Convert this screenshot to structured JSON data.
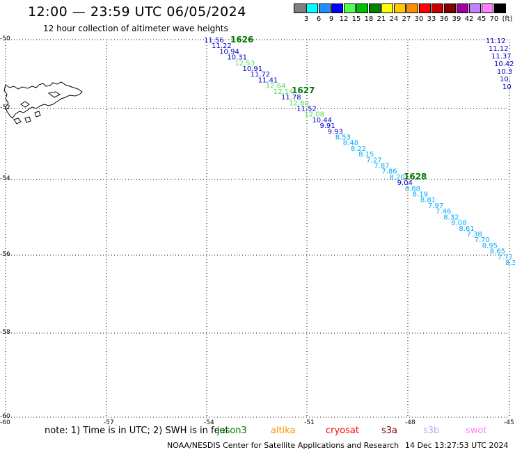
{
  "header": {
    "title": "12:00 — 23:59 UTC 06/05/2024",
    "subtitle": "12 hour collection of altimeter wave heights"
  },
  "legend": {
    "unit": "(ft)",
    "colors": [
      "#808080",
      "#00ffff",
      "#1e90ff",
      "#0000ff",
      "#50ff50",
      "#00c000",
      "#008000",
      "#ffff00",
      "#ffc800",
      "#ff8c00",
      "#ff0000",
      "#c80000",
      "#800000",
      "#a000a0",
      "#c080ff",
      "#ff80ff",
      "#000000"
    ],
    "labels": [
      "3",
      "6",
      "9",
      "12",
      "15",
      "18",
      "21",
      "24",
      "27",
      "30",
      "33",
      "36",
      "39",
      "42",
      "45",
      "70"
    ]
  },
  "axes": {
    "lat_labels": [
      "-50",
      "-52",
      "-54",
      "-56",
      "-58",
      "-60"
    ],
    "lon_labels": [
      "-57",
      "-54",
      "-51",
      "-48",
      "-45"
    ]
  },
  "passes": [
    {
      "id": "1626"
    },
    {
      "id": "1627"
    },
    {
      "id": "1628"
    }
  ],
  "track_values": [
    {
      "v": "11.56",
      "c": "#0000cc"
    },
    {
      "v": "11.22",
      "c": "#0000cc"
    },
    {
      "v": "10.94",
      "c": "#0000cc"
    },
    {
      "v": "10.31",
      "c": "#0000cc"
    },
    {
      "v": "12.53",
      "c": "#50e050"
    },
    {
      "v": "10.91",
      "c": "#0000cc"
    },
    {
      "v": "11.72",
      "c": "#0000cc"
    },
    {
      "v": "11.41",
      "c": "#0000cc"
    },
    {
      "v": "12.64",
      "c": "#50e050"
    },
    {
      "v": "12.14",
      "c": "#50e050"
    },
    {
      "v": "11.78",
      "c": "#0000cc"
    },
    {
      "v": "12.80",
      "c": "#50e050"
    },
    {
      "v": "11.52",
      "c": "#0000cc"
    },
    {
      "v": "12.08",
      "c": "#50e050"
    },
    {
      "v": "10.44",
      "c": "#0000cc"
    },
    {
      "v": "9.91",
      "c": "#0000cc"
    },
    {
      "v": "9.93",
      "c": "#0000cc"
    },
    {
      "v": "8.53",
      "c": "#00aaff"
    },
    {
      "v": "8.48",
      "c": "#00aaff"
    },
    {
      "v": "8.22",
      "c": "#00aaff"
    },
    {
      "v": "8.15",
      "c": "#00aaff"
    },
    {
      "v": "7.27",
      "c": "#00aaff"
    },
    {
      "v": "7.87",
      "c": "#00aaff"
    },
    {
      "v": "7.86",
      "c": "#00aaff"
    },
    {
      "v": "8.20",
      "c": "#00aaff"
    },
    {
      "v": "9.04",
      "c": "#0000cc"
    },
    {
      "v": "8.88",
      "c": "#00aaff"
    },
    {
      "v": "8.19",
      "c": "#00aaff"
    },
    {
      "v": "8.81",
      "c": "#00aaff"
    },
    {
      "v": "7.97",
      "c": "#00aaff"
    },
    {
      "v": "7.46",
      "c": "#00aaff"
    },
    {
      "v": "8.32",
      "c": "#00aaff"
    },
    {
      "v": "8.08",
      "c": "#00aaff"
    },
    {
      "v": "8.61",
      "c": "#00aaff"
    },
    {
      "v": "7.38",
      "c": "#00aaff"
    },
    {
      "v": "7.70",
      "c": "#00aaff"
    },
    {
      "v": "8.95",
      "c": "#00aaff"
    },
    {
      "v": "8.65",
      "c": "#00aaff"
    },
    {
      "v": "7.77",
      "c": "#00aaff"
    },
    {
      "v": "8.3",
      "c": "#00aaff"
    }
  ],
  "edge_values": [
    {
      "v": "11.12",
      "c": "#0000cc"
    },
    {
      "v": "11.12",
      "c": "#0000cc"
    },
    {
      "v": "11.37",
      "c": "#0000cc"
    },
    {
      "v": "10.42",
      "c": "#0000cc"
    },
    {
      "v": "10.3",
      "c": "#0000cc"
    },
    {
      "v": "10.",
      "c": "#0000cc"
    },
    {
      "v": "10",
      "c": "#0000cc"
    }
  ],
  "footer": {
    "note": "note: 1) Time is in UTC; 2) SWH is in feet",
    "satellites": [
      {
        "name": "jason3",
        "color": "#008000"
      },
      {
        "name": "altika",
        "color": "#ff8c00"
      },
      {
        "name": "cryosat",
        "color": "#ff0000"
      },
      {
        "name": "s3a",
        "color": "#800000"
      },
      {
        "name": "s3b",
        "color": "#c0a0ff"
      },
      {
        "name": "swot",
        "color": "#ff80ff"
      }
    ],
    "credit": "NOAA/NESDIS Center for Satellite Applications and Research",
    "timestamp": "14 Dec 13:27:53 UTC 2024"
  }
}
